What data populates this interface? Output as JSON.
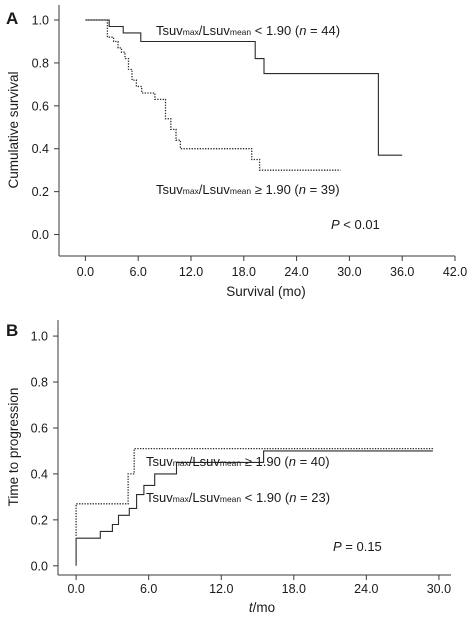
{
  "chart_data": [
    {
      "panel": "A",
      "type": "line",
      "xlabel": "Survival (mo)",
      "ylabel": "Cumulative survival",
      "xlim": [
        -3,
        42
      ],
      "ylim": [
        -0.1,
        1.07
      ],
      "xticks": [
        "0.0",
        "6.0",
        "12.0",
        "18.0",
        "24.0",
        "30.0",
        "36.0",
        "42.0"
      ],
      "yticks": [
        "0.0",
        "0.2",
        "0.4",
        "0.6",
        "0.8",
        "1.0"
      ],
      "p_value": {
        "label": "P",
        "text": " < 0.01"
      },
      "series": [
        {
          "name": "Tsuvmax/Lsuvmean < 1.90 (n = 44)",
          "name_parts": {
            "a": "Tsuv",
            "b": "max",
            "c": "/Lsuv",
            "d": "mean",
            "e": " < 1.90 (",
            "n": "n",
            "f": " = 44)"
          },
          "style": "solid",
          "x": [
            0,
            2.7,
            2.7,
            4.3,
            4.3,
            6.3,
            6.3,
            19.3,
            19.3,
            20.3,
            20.3,
            33.3,
            33.3,
            36.0
          ],
          "y": [
            1.0,
            1.0,
            0.97,
            0.97,
            0.94,
            0.94,
            0.9,
            0.9,
            0.82,
            0.82,
            0.75,
            0.75,
            0.37,
            0.37
          ]
        },
        {
          "name": "Tsuvmax/Lsuvmean ≥ 1.90 (n = 39)",
          "name_parts": {
            "a": "Tsuv",
            "b": "max",
            "c": "/Lsuv",
            "d": "mean",
            "e": " ≥ 1.90 (",
            "n": "n",
            "f": " = 39)"
          },
          "style": "dotted",
          "x": [
            0,
            2.5,
            2.5,
            3.2,
            3.2,
            3.7,
            3.7,
            4.1,
            4.1,
            4.5,
            4.5,
            4.9,
            4.9,
            5.3,
            5.3,
            5.8,
            5.8,
            6.4,
            6.4,
            7.9,
            7.9,
            9.1,
            9.1,
            9.7,
            9.7,
            10.3,
            10.3,
            10.8,
            10.8,
            18.9,
            18.9,
            19.8,
            19.8,
            29.0
          ],
          "y": [
            1.0,
            1.0,
            0.92,
            0.92,
            0.9,
            0.9,
            0.87,
            0.87,
            0.85,
            0.85,
            0.82,
            0.82,
            0.77,
            0.77,
            0.72,
            0.72,
            0.69,
            0.69,
            0.66,
            0.66,
            0.63,
            0.63,
            0.54,
            0.54,
            0.49,
            0.49,
            0.44,
            0.44,
            0.4,
            0.4,
            0.35,
            0.35,
            0.3,
            0.3
          ]
        }
      ]
    },
    {
      "panel": "B",
      "type": "line",
      "xlabel": "t/mo",
      "xlabel_parts": {
        "italic": "t",
        "rest": "/mo"
      },
      "ylabel": "Time to progression",
      "xlim": [
        -1.5,
        31
      ],
      "ylim": [
        -0.04,
        1.07
      ],
      "xticks": [
        "0.0",
        "6.0",
        "12.0",
        "18.0",
        "24.0",
        "30.0"
      ],
      "yticks": [
        "0.0",
        "0.2",
        "0.4",
        "0.6",
        "0.8",
        "1.0"
      ],
      "p_value": {
        "label": "P",
        "text": " = 0.15"
      },
      "series": [
        {
          "name": "Tsuvmax/Lsuvmean ≥ 1.90 (n = 40)",
          "name_parts": {
            "a": "Tsuv",
            "b": "max",
            "c": "/Lsuv",
            "d": "mean",
            "e": " ≥ 1.90 (",
            "n": "n",
            "f": " = 40)"
          },
          "style": "dotted",
          "x": [
            0,
            0,
            4.3,
            4.3,
            4.8,
            4.8,
            29.5
          ],
          "y": [
            0.13,
            0.27,
            0.27,
            0.4,
            0.4,
            0.51,
            0.51
          ]
        },
        {
          "name": "Tsuvmax/Lsuvmean < 1.90 (n = 23)",
          "name_parts": {
            "a": "Tsuv",
            "b": "max",
            "c": "/Lsuv",
            "d": "mean",
            "e": " < 1.90 (",
            "n": "n",
            "f": " = 23)"
          },
          "style": "solid",
          "x": [
            0,
            0,
            2.0,
            2.0,
            3.0,
            3.0,
            3.5,
            3.5,
            4.4,
            4.4,
            5.0,
            5.0,
            5.6,
            5.6,
            6.5,
            6.5,
            8.3,
            8.3,
            15.5,
            15.5,
            29.5
          ],
          "y": [
            0.0,
            0.12,
            0.12,
            0.15,
            0.15,
            0.18,
            0.18,
            0.22,
            0.22,
            0.25,
            0.25,
            0.31,
            0.31,
            0.35,
            0.35,
            0.4,
            0.4,
            0.45,
            0.45,
            0.5,
            0.5
          ]
        }
      ]
    }
  ]
}
